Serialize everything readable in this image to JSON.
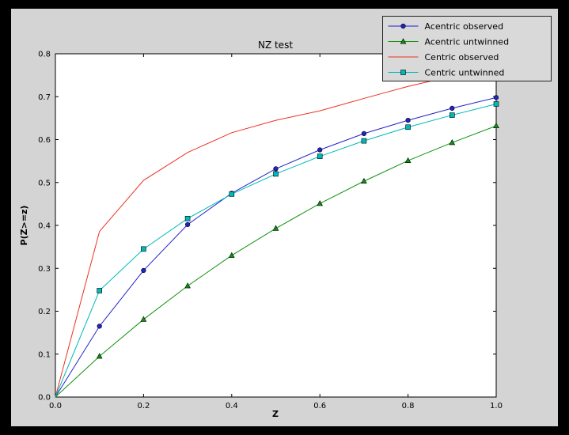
{
  "window": {
    "outer_bg": "#000000",
    "figure_bg": "#d4d4d4",
    "axes_bg": "#ffffff",
    "legend_bg": "#d9d9d9"
  },
  "chart_data": {
    "type": "line",
    "title": "NZ test",
    "xlabel": "Z",
    "ylabel": "P(Z>=z)",
    "xlim": [
      0.0,
      1.0
    ],
    "ylim": [
      0.0,
      0.8
    ],
    "xticks": [
      0.0,
      0.2,
      0.4,
      0.6,
      0.8,
      1.0
    ],
    "yticks": [
      0.0,
      0.1,
      0.2,
      0.3,
      0.4,
      0.5,
      0.6,
      0.7,
      0.8
    ],
    "grid": false,
    "legend_position": "upper right",
    "x": [
      0.0,
      0.1,
      0.2,
      0.3,
      0.4,
      0.5,
      0.6,
      0.7,
      0.8,
      0.9,
      1.0
    ],
    "series": [
      {
        "name": "Acentric observed",
        "color": "#2222cc",
        "marker": "circle",
        "values": [
          0.0,
          0.165,
          0.295,
          0.402,
          0.475,
          0.532,
          0.576,
          0.614,
          0.645,
          0.673,
          0.698
        ]
      },
      {
        "name": "Acentric untwinned",
        "color": "#0f930f",
        "marker": "triangle",
        "values": [
          0.0,
          0.095,
          0.181,
          0.259,
          0.33,
          0.393,
          0.451,
          0.503,
          0.551,
          0.593,
          0.632
        ]
      },
      {
        "name": "Centric observed",
        "color": "#ed3124",
        "marker": "none",
        "values": [
          0.0,
          0.386,
          0.505,
          0.57,
          0.616,
          0.645,
          0.667,
          0.696,
          0.724,
          0.748,
          0.77
        ]
      },
      {
        "name": "Centric untwinned",
        "color": "#00b9b9",
        "marker": "square",
        "values": [
          0.0,
          0.248,
          0.345,
          0.416,
          0.473,
          0.52,
          0.561,
          0.597,
          0.629,
          0.657,
          0.683
        ]
      }
    ]
  }
}
